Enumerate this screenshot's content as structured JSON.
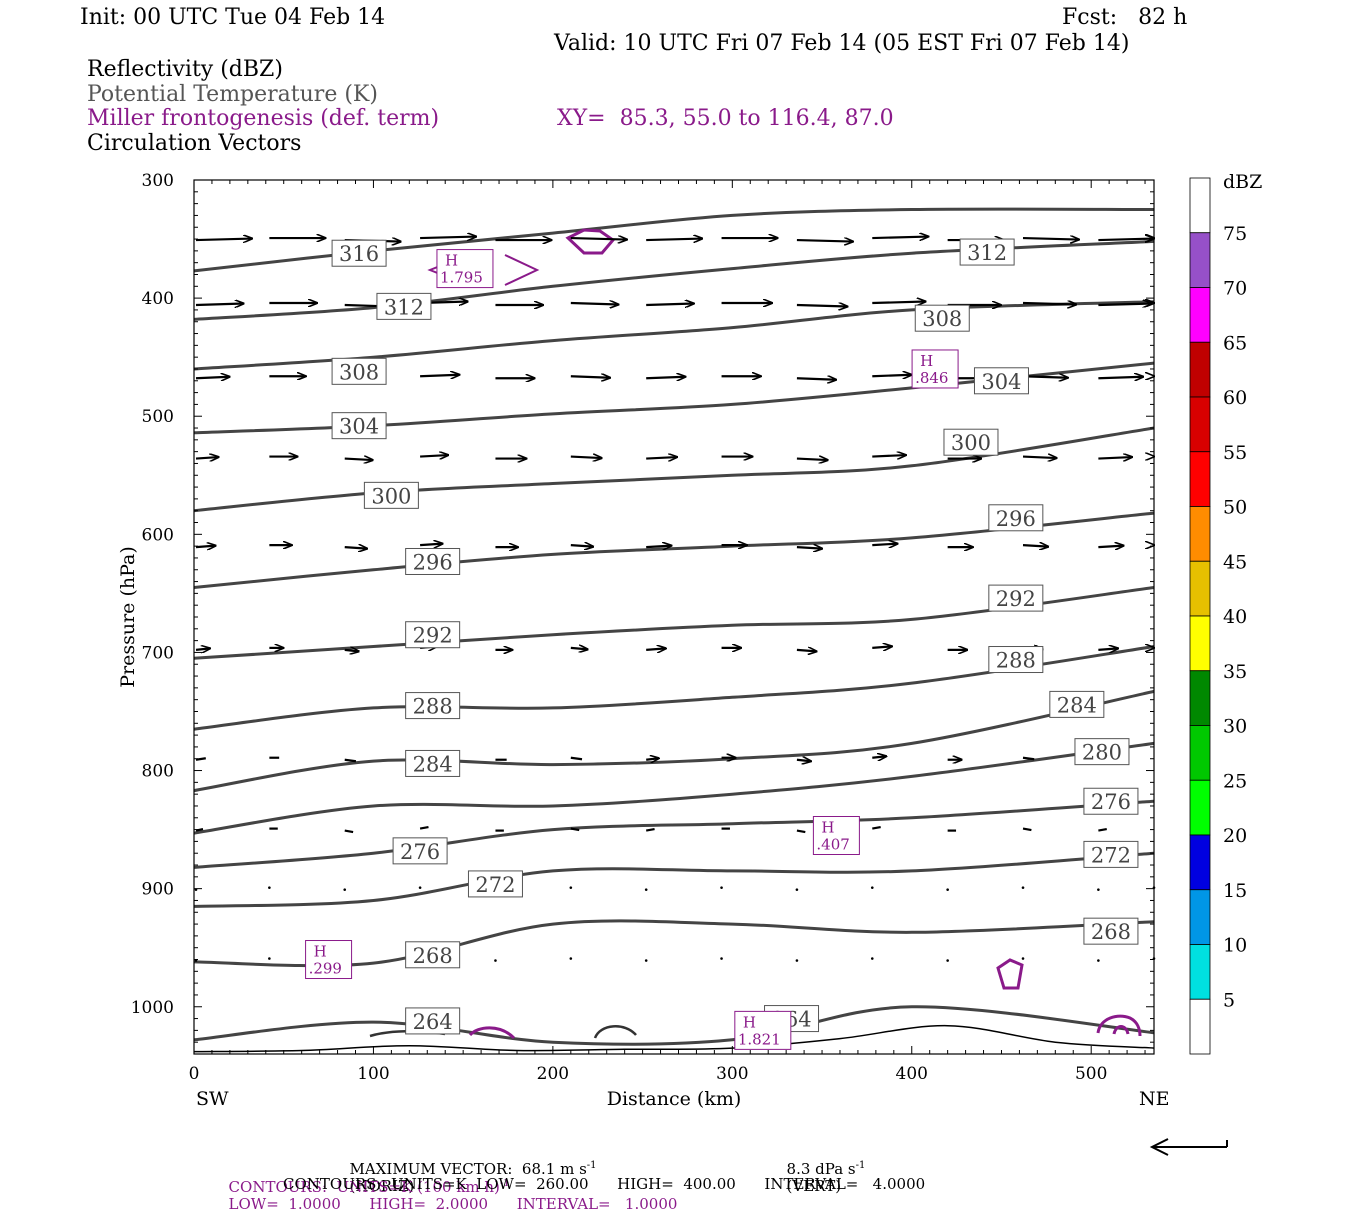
{
  "header": {
    "init": "Init: 00 UTC Tue 04 Feb 14",
    "fcst": "Fcst:   82 h",
    "valid": "Valid: 10 UTC Fri 07 Feb 14 (05 EST Fri 07 Feb 14)",
    "field1": "Reflectivity (dBZ)",
    "field2": "Potential Temperature (K)",
    "field3": "Miller frontogenesis (def. term)",
    "xy": "XY=  85.3, 55.0 to 116.4, 87.0",
    "field4": "Circulation Vectors"
  },
  "colors": {
    "theta": "#444444",
    "fronto": "#8a1a8a",
    "vector": "#000000"
  },
  "chart_data": {
    "type": "line",
    "xlabel": "Distance (km)",
    "ylabel": "Pressure (hPa)",
    "x_ticks": [
      0,
      100,
      200,
      300,
      400,
      500
    ],
    "y_ticks": [
      300,
      400,
      500,
      600,
      700,
      800,
      900,
      1000
    ],
    "xlim": [
      0,
      535
    ],
    "ylim": [
      300,
      1040
    ],
    "y_inverted": true,
    "x_end_labels": {
      "left": "SW",
      "right": "NE"
    },
    "colorbar": {
      "title": "dBZ",
      "labels": [
        "75",
        "70",
        "65",
        "60",
        "55",
        "50",
        "45",
        "40",
        "35",
        "30",
        "25",
        "20",
        "15",
        "10",
        "5"
      ],
      "colors": [
        "#ffffff",
        "#9650c8",
        "#ff00ff",
        "#c00000",
        "#d80000",
        "#ff0000",
        "#ff8c00",
        "#e6c000",
        "#ffff00",
        "#008800",
        "#00c800",
        "#00ff00",
        "#0000e0",
        "#0096e6",
        "#00e0e0",
        "#ffffff"
      ]
    },
    "theta_contours": [
      {
        "level": "316",
        "x": [
          0,
          100,
          200,
          300,
          400,
          535
        ],
        "p": [
          377,
          360,
          345,
          330,
          325,
          325
        ],
        "labels": [
          [
            92,
            362
          ]
        ]
      },
      {
        "level": "312",
        "x": [
          0,
          100,
          200,
          300,
          400,
          535
        ],
        "p": [
          418,
          408,
          390,
          375,
          362,
          352
        ],
        "labels": [
          [
            117,
            407
          ],
          [
            442,
            361
          ]
        ]
      },
      {
        "level": "308",
        "x": [
          0,
          100,
          200,
          300,
          400,
          535
        ],
        "p": [
          460,
          450,
          436,
          425,
          410,
          403
        ],
        "labels": [
          [
            92,
            462
          ],
          [
            417,
            417
          ]
        ]
      },
      {
        "level": "304",
        "x": [
          0,
          100,
          200,
          300,
          400,
          535
        ],
        "p": [
          514,
          508,
          498,
          490,
          476,
          455
        ],
        "labels": [
          [
            92,
            508
          ],
          [
            450,
            470
          ]
        ]
      },
      {
        "level": "300",
        "x": [
          0,
          100,
          200,
          300,
          400,
          535
        ],
        "p": [
          580,
          565,
          557,
          550,
          542,
          510
        ],
        "labels": [
          [
            110,
            567
          ],
          [
            433,
            522
          ]
        ]
      },
      {
        "level": "296",
        "x": [
          0,
          100,
          200,
          300,
          400,
          535
        ],
        "p": [
          645,
          630,
          617,
          610,
          603,
          582
        ],
        "labels": [
          [
            133,
            623
          ],
          [
            458,
            586
          ]
        ]
      },
      {
        "level": "292",
        "x": [
          0,
          100,
          200,
          300,
          400,
          535
        ],
        "p": [
          705,
          695,
          685,
          677,
          672,
          645
        ],
        "labels": [
          [
            133,
            685
          ],
          [
            458,
            654
          ]
        ]
      },
      {
        "level": "288",
        "x": [
          0,
          100,
          200,
          300,
          400,
          535
        ],
        "p": [
          765,
          747,
          747,
          738,
          726,
          695
        ],
        "labels": [
          [
            133,
            745
          ],
          [
            458,
            706
          ]
        ]
      },
      {
        "level": "284",
        "x": [
          0,
          100,
          200,
          300,
          400,
          535
        ],
        "p": [
          817,
          792,
          795,
          790,
          777,
          733
        ],
        "labels": [
          [
            133,
            794
          ],
          [
            492,
            744
          ]
        ]
      },
      {
        "level": "280",
        "x": [
          0,
          100,
          200,
          300,
          400,
          535
        ],
        "p": [
          853,
          830,
          830,
          820,
          805,
          777
        ],
        "labels": [
          [
            506,
            784
          ]
        ]
      },
      {
        "level": "276",
        "x": [
          0,
          100,
          200,
          300,
          400,
          535
        ],
        "p": [
          882,
          870,
          850,
          845,
          840,
          826
        ],
        "labels": [
          [
            126,
            868
          ],
          [
            511,
            826
          ]
        ]
      },
      {
        "level": "272",
        "x": [
          0,
          100,
          200,
          300,
          400,
          535
        ],
        "p": [
          915,
          910,
          885,
          885,
          885,
          870
        ],
        "labels": [
          [
            168,
            896
          ],
          [
            511,
            871
          ]
        ]
      },
      {
        "level": "268",
        "x": [
          0,
          100,
          200,
          300,
          400,
          535
        ],
        "p": [
          962,
          963,
          930,
          930,
          937,
          928
        ],
        "labels": [
          [
            133,
            956
          ],
          [
            511,
            936
          ]
        ]
      },
      {
        "level": "264",
        "x": [
          0,
          100,
          200,
          300,
          400,
          535
        ],
        "p": [
          1028,
          1013,
          1030,
          1028,
          1000,
          1022
        ],
        "labels": [
          [
            133,
            1012
          ],
          [
            333,
            1010
          ]
        ]
      }
    ],
    "fronto_max": [
      {
        "label": "H",
        "value": "1.795",
        "x": 151,
        "p": 375
      },
      {
        "label": "H",
        "value": ".846",
        "x": 413,
        "p": 460
      },
      {
        "label": "H",
        "value": ".407",
        "x": 358,
        "p": 855
      },
      {
        "label": "H",
        "value": ".299",
        "x": 75,
        "p": 960
      },
      {
        "label": "H",
        "value": "1.821",
        "x": 317,
        "p": 1020
      }
    ],
    "circulation_vectors": {
      "x": [
        0,
        42,
        84,
        126,
        168,
        210,
        252,
        294,
        336,
        378,
        420,
        462,
        504,
        535
      ],
      "rows": [
        {
          "p": 350,
          "u": [
            4.0,
            4.0,
            4.0,
            4.0,
            4.0,
            4.0,
            4.0,
            4.0,
            4.0,
            4.0,
            4.0,
            4.0,
            4.0,
            4.0
          ]
        },
        {
          "p": 405,
          "u": [
            3.4,
            3.4,
            3.4,
            3.4,
            3.4,
            3.4,
            3.4,
            3.6,
            3.6,
            3.8,
            3.8,
            3.8,
            3.8,
            3.8
          ]
        },
        {
          "p": 467,
          "u": [
            2.4,
            2.6,
            2.6,
            2.8,
            2.8,
            2.8,
            2.8,
            2.8,
            2.8,
            2.8,
            3.2,
            3.2,
            3.2,
            3.2
          ]
        },
        {
          "p": 535,
          "u": [
            1.6,
            2.0,
            2.0,
            2.0,
            2.2,
            2.2,
            2.2,
            2.2,
            2.2,
            2.4,
            2.4,
            2.4,
            2.4,
            2.4
          ]
        },
        {
          "p": 610,
          "u": [
            1.4,
            1.6,
            1.6,
            1.6,
            1.6,
            1.6,
            1.8,
            1.8,
            1.8,
            1.8,
            1.8,
            1.8,
            1.8,
            1.8
          ]
        },
        {
          "p": 697,
          "u": [
            1.0,
            1.0,
            1.0,
            1.2,
            1.2,
            1.2,
            1.4,
            1.4,
            1.4,
            1.4,
            1.4,
            1.4,
            1.4,
            1.4
          ]
        },
        {
          "p": 790,
          "u": [
            0.7,
            0.7,
            0.8,
            0.8,
            0.8,
            0.8,
            0.9,
            1.0,
            1.0,
            1.0,
            1.0,
            0.8,
            0.8,
            0.8
          ]
        },
        {
          "p": 850,
          "u": [
            0.5,
            0.6,
            0.6,
            0.6,
            0.6,
            0.6,
            0.6,
            0.6,
            0.6,
            0.6,
            0.6,
            0.6,
            0.6,
            0.6
          ]
        },
        {
          "p": 900,
          "u": [
            0.2,
            0.2,
            0.2,
            0.2,
            0.2,
            0.2,
            0.2,
            0.2,
            0.2,
            0.2,
            0.2,
            0.2,
            0.2,
            0.2
          ]
        },
        {
          "p": 960,
          "u": [
            0.1,
            0.1,
            0.1,
            0.1,
            0.1,
            0.1,
            0.1,
            0.1,
            0.1,
            0.1,
            0.1,
            0.1,
            0.1,
            0.1
          ]
        }
      ],
      "max_vector_label": "MAXIMUM VECTOR:  68.1 m s",
      "max_vector_horiz": "(HORIZ)",
      "max_vector_vert": "8.3 dPa s",
      "max_vector_vert_tag": "(VERT)",
      "exponent": "-1"
    }
  },
  "footer": {
    "fronto_contours": "CONTOURS:  UNITS=K (100 km h)",
    "fronto_range": "LOW=  1.0000      HIGH=  2.0000      INTERVAL=   1.0000",
    "theta_contours": "CONTOURS:  UNITS=K  LOW=  260.00      HIGH=  400.00      INTERVAL=   4.0000"
  }
}
